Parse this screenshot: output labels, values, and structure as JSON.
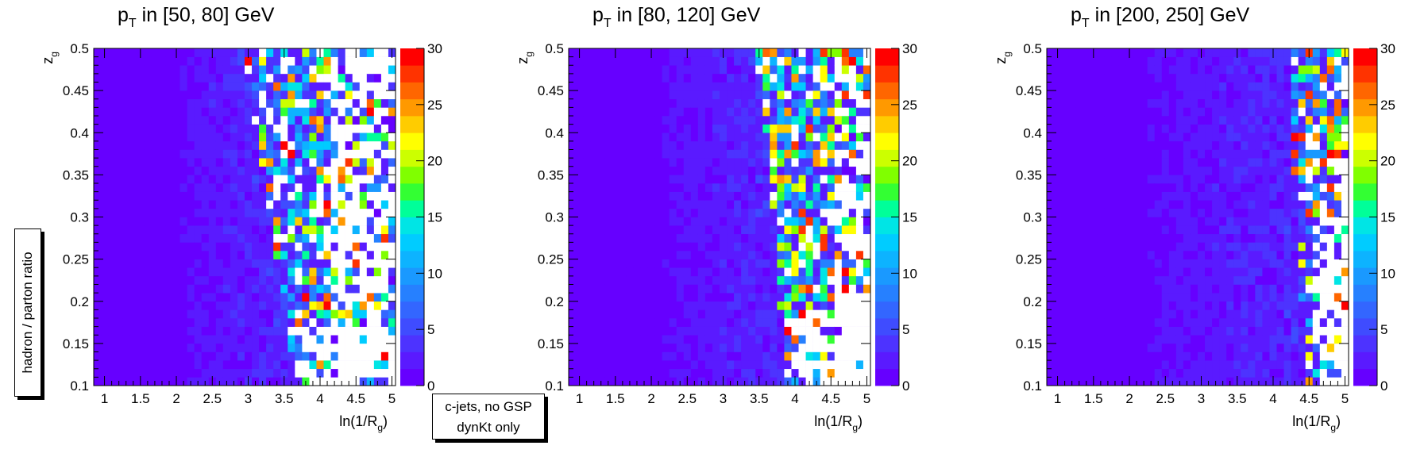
{
  "chart_data": [
    {
      "type": "heatmap",
      "title_main": "p",
      "title_sub": "T",
      "title_rest": " in [50, 80] GeV",
      "xlabel_main": "ln(1/R",
      "xlabel_sub": "g",
      "xlabel_end": ")",
      "ylabel_main": "z",
      "ylabel_sub": "g",
      "xlim": [
        0.85,
        5.05
      ],
      "ylim": [
        0.1,
        0.5
      ],
      "zlim": [
        0,
        30
      ],
      "xticks": [
        "1",
        "1.5",
        "2",
        "2.5",
        "3",
        "3.5",
        "4",
        "4.5",
        "5"
      ],
      "yticks": [
        "0.1",
        "0.15",
        "0.2",
        "0.25",
        "0.3",
        "0.35",
        "0.4",
        "0.45",
        "0.5"
      ],
      "zticks": [
        "0",
        "5",
        "10",
        "15",
        "20",
        "25",
        "30"
      ],
      "bins": [
        42,
        40
      ],
      "structure": {
        "dense_edge": 3.45,
        "fluct_end": 4.15,
        "front_ylow": 0.22,
        "front_slope": 3.6
      }
    },
    {
      "type": "heatmap",
      "title_main": "p",
      "title_sub": "T",
      "title_rest": " in [80, 120] GeV",
      "xlabel_main": "ln(1/R",
      "xlabel_sub": "g",
      "xlabel_end": ")",
      "ylabel_main": "z",
      "ylabel_sub": "g",
      "xlim": [
        0.85,
        5.05
      ],
      "ylim": [
        0.1,
        0.5
      ],
      "zlim": [
        0,
        30
      ],
      "xticks": [
        "1",
        "1.5",
        "2",
        "2.5",
        "3",
        "3.5",
        "4",
        "4.5",
        "5"
      ],
      "yticks": [
        "0.1",
        "0.15",
        "0.2",
        "0.25",
        "0.3",
        "0.35",
        "0.4",
        "0.45",
        "0.5"
      ],
      "zticks": [
        "0",
        "5",
        "10",
        "15",
        "20",
        "25",
        "30"
      ],
      "bins": [
        42,
        40
      ],
      "structure": {
        "dense_edge": 3.75,
        "fluct_end": 4.55,
        "front_ylow": 0.24,
        "front_slope": 2.2
      }
    },
    {
      "type": "heatmap",
      "title_main": "p",
      "title_sub": "T",
      "title_rest": " in [200, 250] GeV",
      "xlabel_main": "ln(1/R",
      "xlabel_sub": "g",
      "xlabel_end": ")",
      "ylabel_main": "z",
      "ylabel_sub": "g",
      "xlim": [
        0.85,
        5.05
      ],
      "ylim": [
        0.1,
        0.5
      ],
      "zlim": [
        0,
        30
      ],
      "xticks": [
        "1",
        "1.5",
        "2",
        "2.5",
        "3",
        "3.5",
        "4",
        "4.5",
        "5"
      ],
      "yticks": [
        "0.1",
        "0.15",
        "0.2",
        "0.25",
        "0.3",
        "0.35",
        "0.4",
        "0.45",
        "0.5"
      ],
      "zticks": [
        "0",
        "5",
        "10",
        "15",
        "20",
        "25",
        "30"
      ],
      "bins": [
        42,
        40
      ],
      "structure": {
        "dense_edge": 4.3,
        "fluct_end": 4.95,
        "front_ylow": 0.35,
        "front_slope": 1.3
      }
    }
  ],
  "labels": {
    "ratio_box": "hadron / parton ratio",
    "info_line1": "c-jets, no GSP",
    "info_line2": "dynKt only"
  },
  "palette": [
    "#6600ff",
    "#5a1aff",
    "#4d33ff",
    "#3f4cff",
    "#3366ff",
    "#2680ff",
    "#1a99ff",
    "#0db3ff",
    "#00ccff",
    "#00e5e5",
    "#00ff99",
    "#33ff33",
    "#80ff00",
    "#ccff00",
    "#ffff00",
    "#ffcc00",
    "#ff9900",
    "#ff6600",
    "#ff3300",
    "#ff0000"
  ]
}
